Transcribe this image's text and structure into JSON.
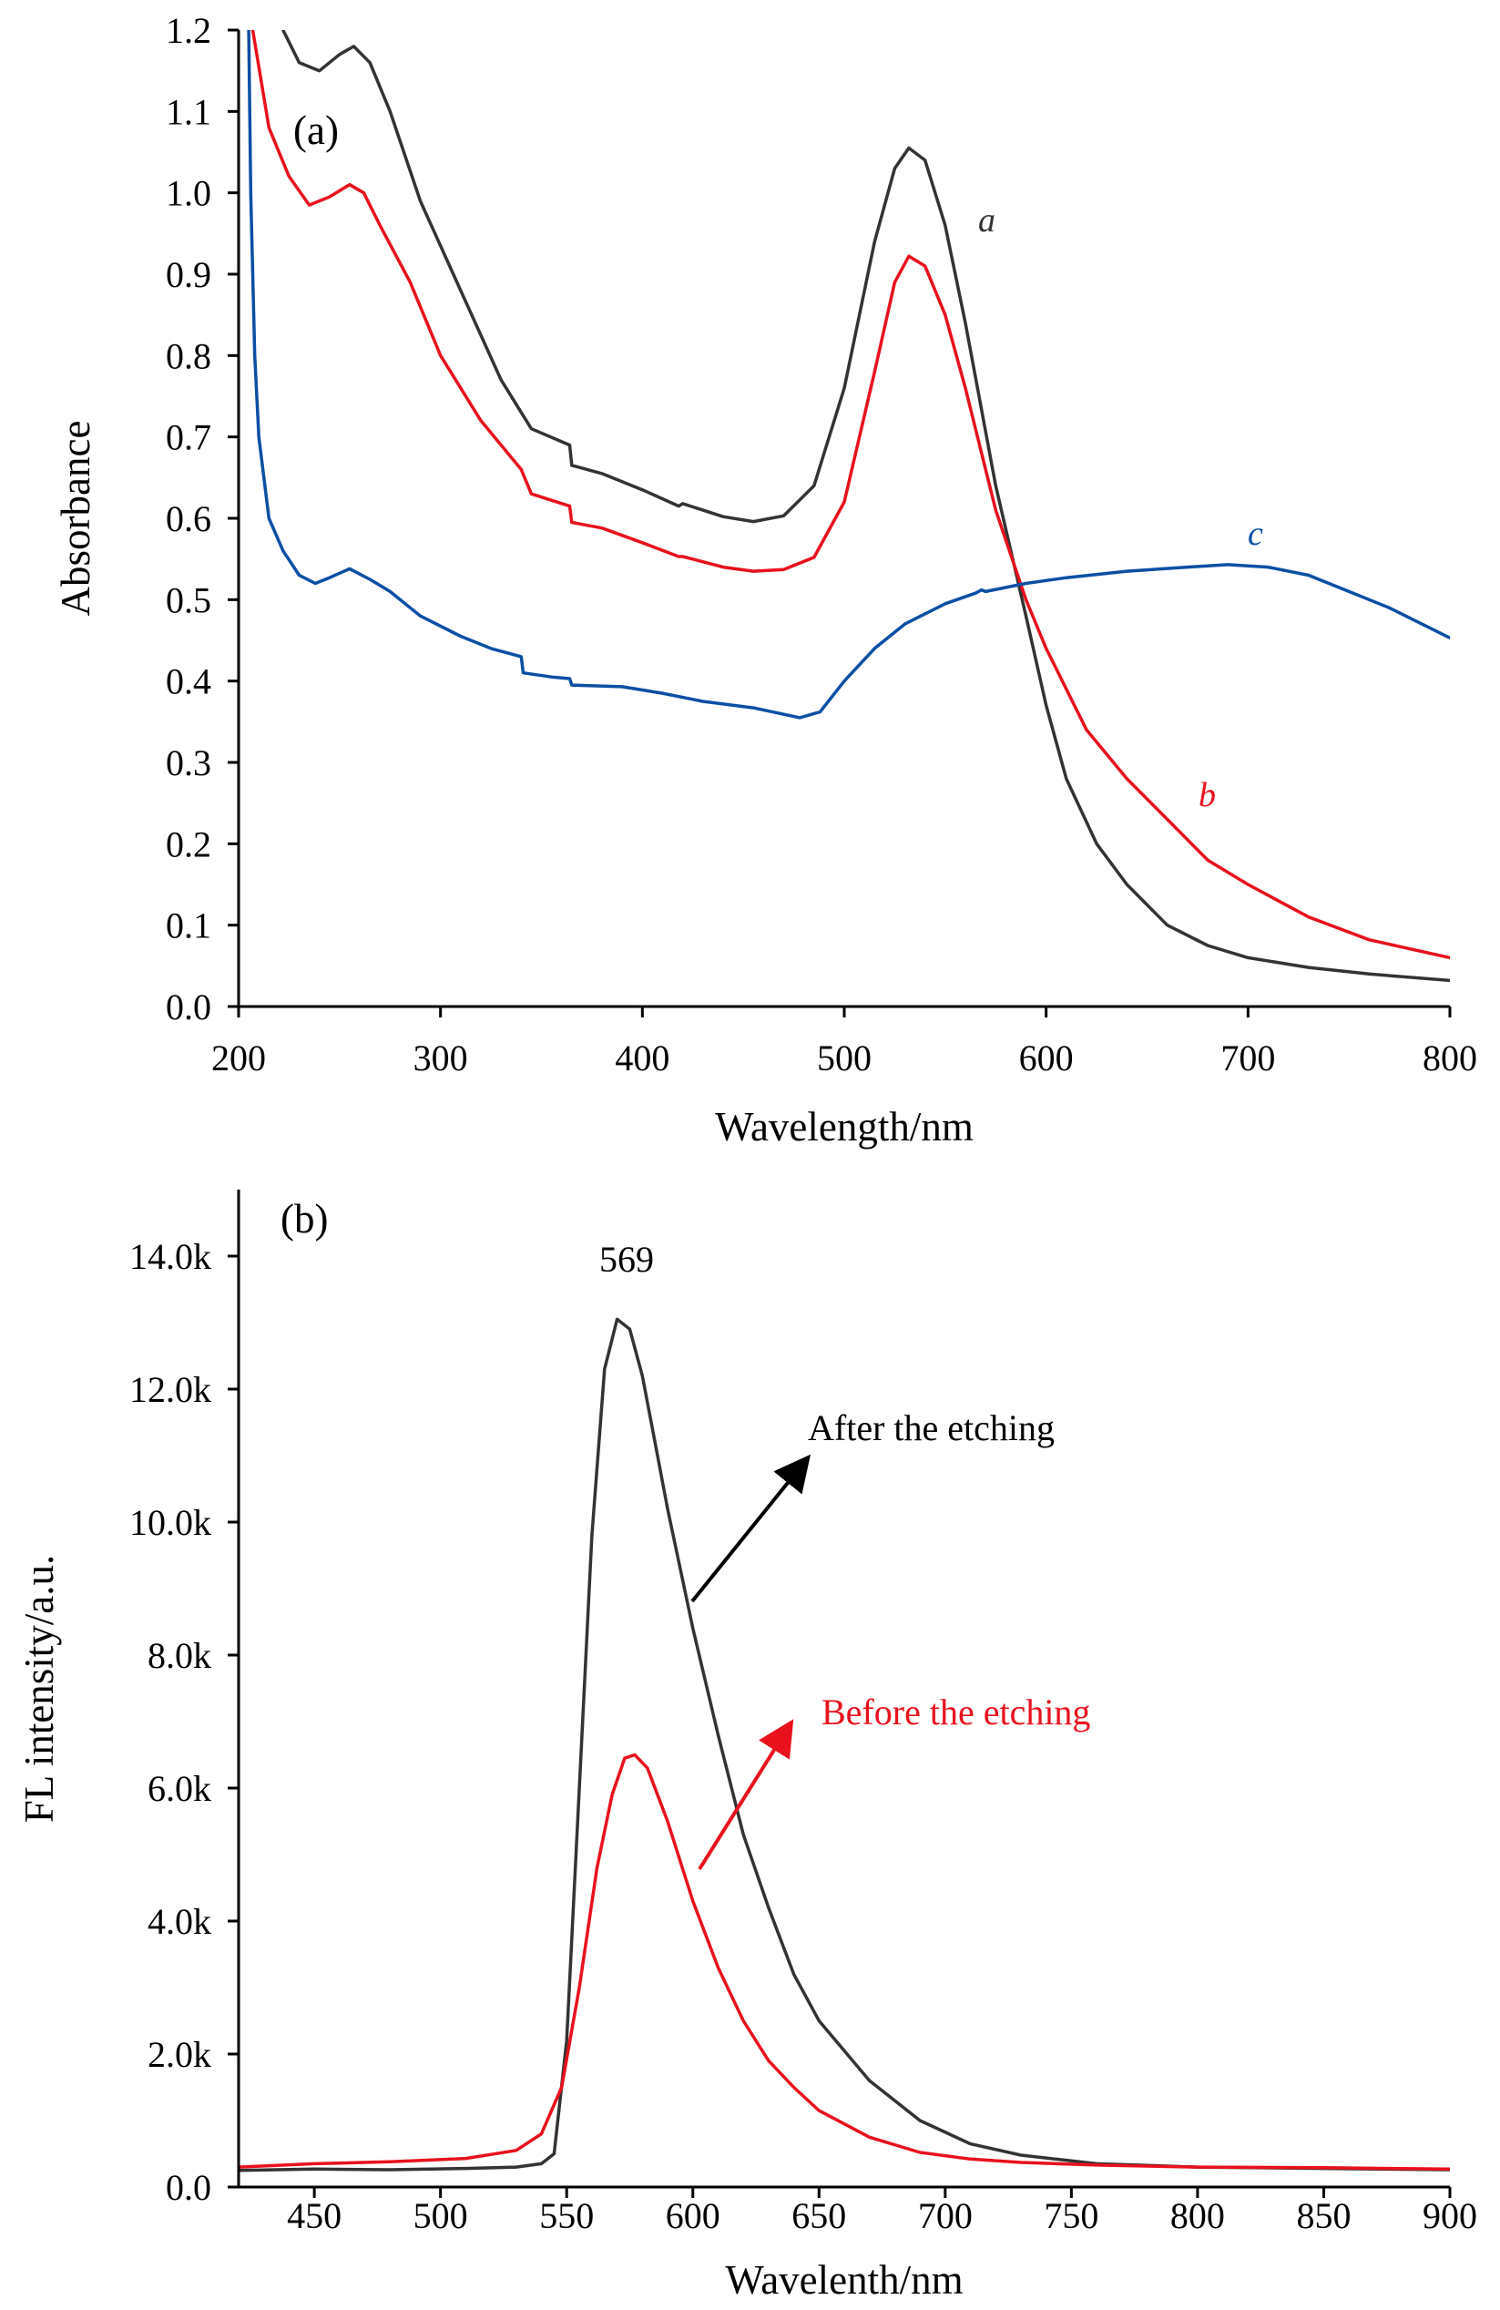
{
  "colors": {
    "black": "#333333",
    "red": "#e8111c",
    "blue": "#0b4fa5",
    "axis": "#000000"
  },
  "chart_data": [
    {
      "type": "line",
      "panel_label": "(a)",
      "xlabel": "Wavelength/nm",
      "ylabel": "Absorbance",
      "xlim": [
        200,
        800
      ],
      "ylim": [
        0.0,
        1.2
      ],
      "x_ticks": [
        "200",
        "300",
        "400",
        "500",
        "600",
        "700",
        "800"
      ],
      "y_ticks": [
        "0.0",
        "0.1",
        "0.2",
        "0.3",
        "0.4",
        "0.5",
        "0.6",
        "0.7",
        "0.8",
        "0.9",
        "1.0",
        "1.1",
        "1.2"
      ],
      "grid": false,
      "series": [
        {
          "name": "a",
          "color": "#333333",
          "x": [
            222,
            230,
            240,
            250,
            257,
            265,
            275,
            290,
            310,
            330,
            345,
            364,
            365,
            380,
            400,
            418,
            420,
            440,
            455,
            470,
            485,
            500,
            515,
            525,
            532,
            540,
            550,
            560,
            575,
            590,
            600,
            610,
            625,
            640,
            660,
            680,
            700,
            730,
            760,
            800
          ],
          "y": [
            1.2,
            1.16,
            1.15,
            1.17,
            1.18,
            1.16,
            1.1,
            0.99,
            0.88,
            0.77,
            0.71,
            0.69,
            0.665,
            0.655,
            0.635,
            0.615,
            0.618,
            0.602,
            0.596,
            0.603,
            0.64,
            0.76,
            0.94,
            1.03,
            1.055,
            1.04,
            0.96,
            0.84,
            0.64,
            0.48,
            0.37,
            0.28,
            0.2,
            0.15,
            0.1,
            0.075,
            0.06,
            0.048,
            0.04,
            0.032
          ]
        },
        {
          "name": "b",
          "color": "#e8111c",
          "x": [
            207,
            215,
            225,
            235,
            245,
            255,
            262,
            270,
            285,
            300,
            320,
            340,
            345,
            364,
            365,
            380,
            400,
            418,
            420,
            440,
            455,
            470,
            485,
            500,
            515,
            525,
            532,
            540,
            550,
            560,
            575,
            590,
            600,
            620,
            640,
            660,
            680,
            700,
            730,
            760,
            800
          ],
          "y": [
            1.2,
            1.08,
            1.02,
            0.985,
            0.995,
            1.01,
            1.0,
            0.96,
            0.89,
            0.8,
            0.72,
            0.66,
            0.63,
            0.615,
            0.595,
            0.588,
            0.57,
            0.553,
            0.553,
            0.54,
            0.535,
            0.537,
            0.552,
            0.62,
            0.78,
            0.89,
            0.922,
            0.91,
            0.85,
            0.76,
            0.61,
            0.5,
            0.44,
            0.34,
            0.28,
            0.23,
            0.18,
            0.15,
            0.11,
            0.082,
            0.06
          ]
        },
        {
          "name": "c",
          "color": "#0b4fa5",
          "x": [
            205,
            206,
            208,
            210,
            215,
            222,
            230,
            238,
            245,
            255,
            265,
            275,
            290,
            310,
            325,
            340,
            341,
            355,
            364,
            365,
            390,
            410,
            430,
            455,
            478,
            488,
            500,
            515,
            530,
            550,
            565,
            568,
            570,
            590,
            610,
            640,
            670,
            690,
            710,
            730,
            750,
            770,
            800
          ],
          "y": [
            1.2,
            1.0,
            0.8,
            0.7,
            0.6,
            0.56,
            0.53,
            0.52,
            0.527,
            0.538,
            0.525,
            0.51,
            0.48,
            0.455,
            0.44,
            0.43,
            0.41,
            0.405,
            0.403,
            0.395,
            0.393,
            0.385,
            0.375,
            0.367,
            0.355,
            0.362,
            0.4,
            0.44,
            0.47,
            0.495,
            0.508,
            0.512,
            0.51,
            0.52,
            0.527,
            0.535,
            0.54,
            0.543,
            0.54,
            0.53,
            0.51,
            0.49,
            0.453
          ]
        }
      ]
    },
    {
      "type": "line",
      "panel_label": "(b)",
      "xlabel": "Wavelenth/nm",
      "ylabel": "FL intensity/a.u.",
      "xlim": [
        420,
        900
      ],
      "ylim": [
        0,
        15000
      ],
      "x_ticks": [
        "450",
        "500",
        "550",
        "600",
        "650",
        "700",
        "750",
        "800",
        "850",
        "900"
      ],
      "y_ticks": [
        "0.0",
        "2.0k",
        "4.0k",
        "6.0k",
        "8.0k",
        "10.0k",
        "12.0k",
        "14.0k"
      ],
      "grid": false,
      "peak_label": "569",
      "series": [
        {
          "name": "After the etching",
          "color": "#333333",
          "x": [
            420,
            450,
            480,
            510,
            530,
            540,
            545,
            550,
            555,
            560,
            565,
            570,
            575,
            580,
            585,
            590,
            600,
            610,
            620,
            630,
            640,
            650,
            670,
            690,
            710,
            730,
            760,
            800,
            850,
            900
          ],
          "y": [
            250,
            270,
            260,
            280,
            300,
            350,
            500,
            2200,
            6000,
            9800,
            12300,
            13050,
            12900,
            12200,
            11200,
            10200,
            8400,
            6800,
            5300,
            4200,
            3200,
            2500,
            1600,
            1000,
            650,
            480,
            350,
            300,
            280,
            260
          ]
        },
        {
          "name": "Before the etching",
          "color": "#e8111c",
          "x": [
            420,
            450,
            480,
            510,
            530,
            540,
            548,
            555,
            562,
            568,
            573,
            577,
            582,
            590,
            600,
            610,
            620,
            630,
            640,
            650,
            670,
            690,
            710,
            730,
            760,
            800,
            850,
            900
          ],
          "y": [
            300,
            350,
            380,
            430,
            550,
            800,
            1500,
            3000,
            4800,
            5900,
            6450,
            6500,
            6300,
            5500,
            4300,
            3300,
            2500,
            1900,
            1500,
            1150,
            750,
            520,
            420,
            370,
            330,
            300,
            290,
            270
          ]
        }
      ],
      "annotations": [
        {
          "text": "After the etching",
          "color": "#000000"
        },
        {
          "text": "Before the etching",
          "color": "#e8111c"
        }
      ]
    }
  ]
}
